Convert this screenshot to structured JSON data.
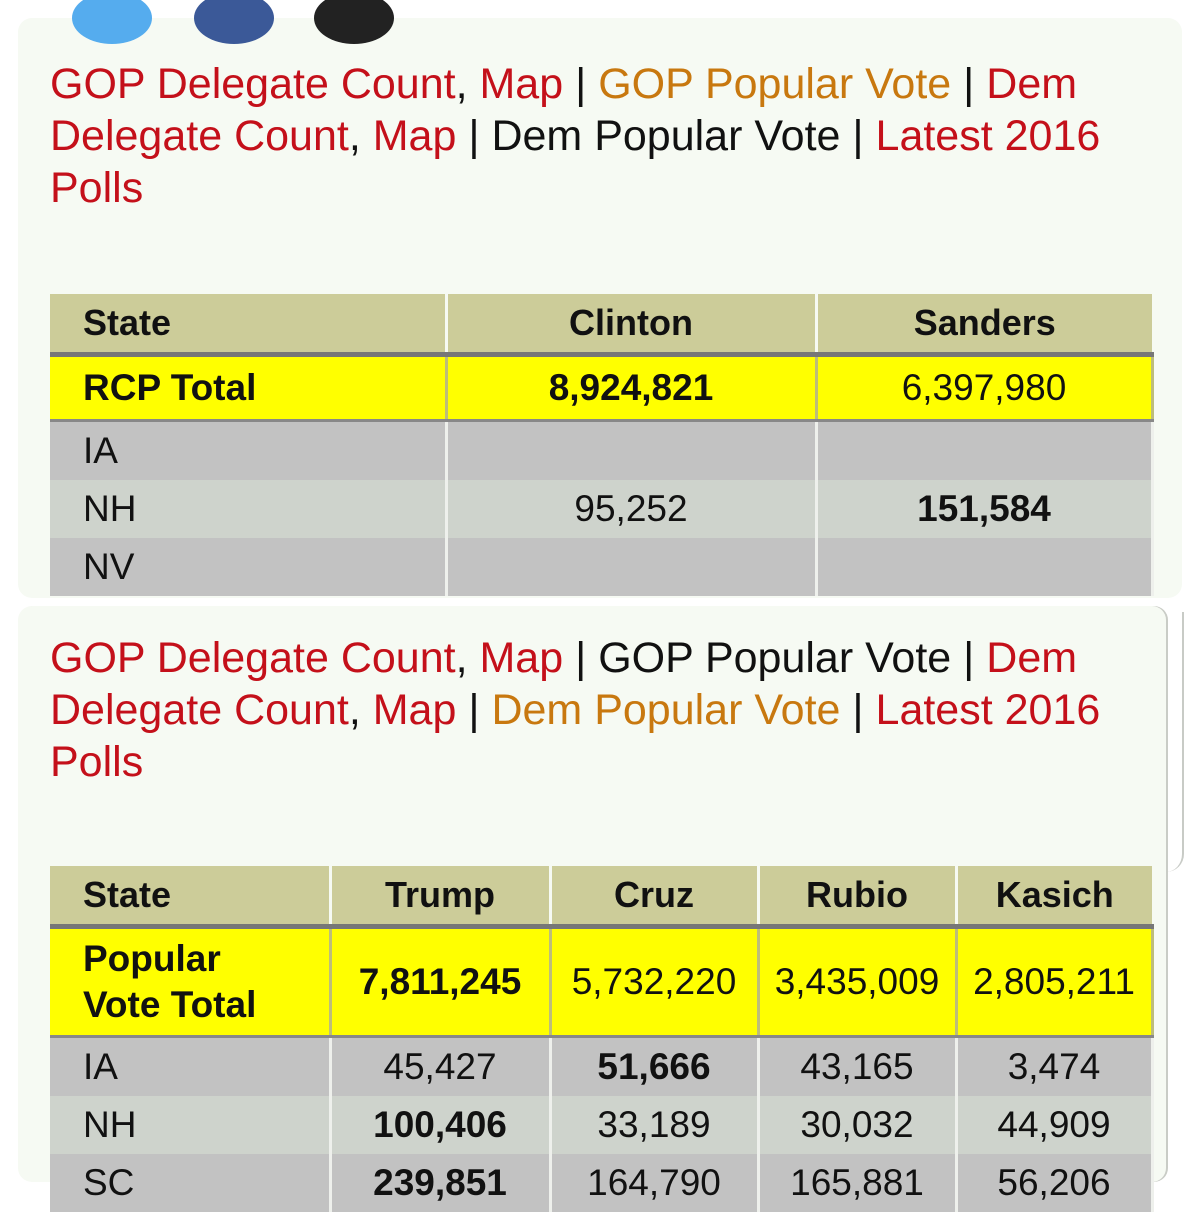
{
  "nav_top": {
    "links": [
      {
        "text": "GOP Delegate Count",
        "type": "link",
        "sep": ", "
      },
      {
        "text": "Map",
        "type": "link",
        "sep": " | "
      },
      {
        "text": "GOP Popular Vote",
        "type": "current",
        "sep": " | "
      },
      {
        "text": "Dem Delegate Count",
        "type": "link",
        "sep": ", "
      },
      {
        "text": "Map",
        "type": "link",
        "sep": " | "
      },
      {
        "text": "Dem Popular Vote",
        "type": "plain",
        "sep": " | "
      },
      {
        "text": "Latest 2016 Polls",
        "type": "link",
        "sep": ""
      }
    ]
  },
  "dem_table": {
    "headers": [
      "State",
      "Clinton",
      "Sanders"
    ],
    "total": {
      "label": "RCP Total",
      "values": [
        "8,924,821",
        "6,397,980"
      ],
      "winner_index": 0
    },
    "rows": [
      {
        "state": "IA",
        "values": [
          "",
          ""
        ],
        "winner_index": -1
      },
      {
        "state": "NH",
        "values": [
          "95,252",
          "151,584"
        ],
        "winner_index": 1
      },
      {
        "state": "NV",
        "values": [
          "",
          ""
        ],
        "winner_index": -1
      }
    ]
  },
  "nav_bottom": {
    "links": [
      {
        "text": "GOP Delegate Count",
        "type": "link",
        "sep": ", "
      },
      {
        "text": "Map",
        "type": "link",
        "sep": " | "
      },
      {
        "text": "GOP Popular Vote",
        "type": "plain",
        "sep": " | "
      },
      {
        "text": "Dem Delegate Count",
        "type": "link",
        "sep": ", "
      },
      {
        "text": "Map",
        "type": "link",
        "sep": " | "
      },
      {
        "text": "Dem Popular Vote",
        "type": "current",
        "sep": " | "
      },
      {
        "text": "Latest 2016 Polls",
        "type": "link",
        "sep": ""
      }
    ]
  },
  "gop_table": {
    "headers": [
      "State",
      "Trump",
      "Cruz",
      "Rubio",
      "Kasich"
    ],
    "total": {
      "label_line1": "Popular",
      "label_line2": "Vote Total",
      "values": [
        "7,811,245",
        "5,732,220",
        "3,435,009",
        "2,805,211"
      ],
      "winner_index": 0
    },
    "rows": [
      {
        "state": "IA",
        "values": [
          "45,427",
          "51,666",
          "43,165",
          "3,474"
        ],
        "winner_index": 1
      },
      {
        "state": "NH",
        "values": [
          "100,406",
          "33,189",
          "30,032",
          "44,909"
        ],
        "winner_index": 0
      },
      {
        "state": "SC",
        "values": [
          "239,851",
          "164,790",
          "165,881",
          "56,206"
        ],
        "winner_index": 0
      }
    ]
  },
  "colors": {
    "link": "#c4101a",
    "current_link": "#c8780f",
    "header_bg": "#cccc99",
    "total_bg": "#ffff00"
  },
  "icons": [
    "twitter-icon",
    "facebook-icon",
    "email-icon"
  ]
}
